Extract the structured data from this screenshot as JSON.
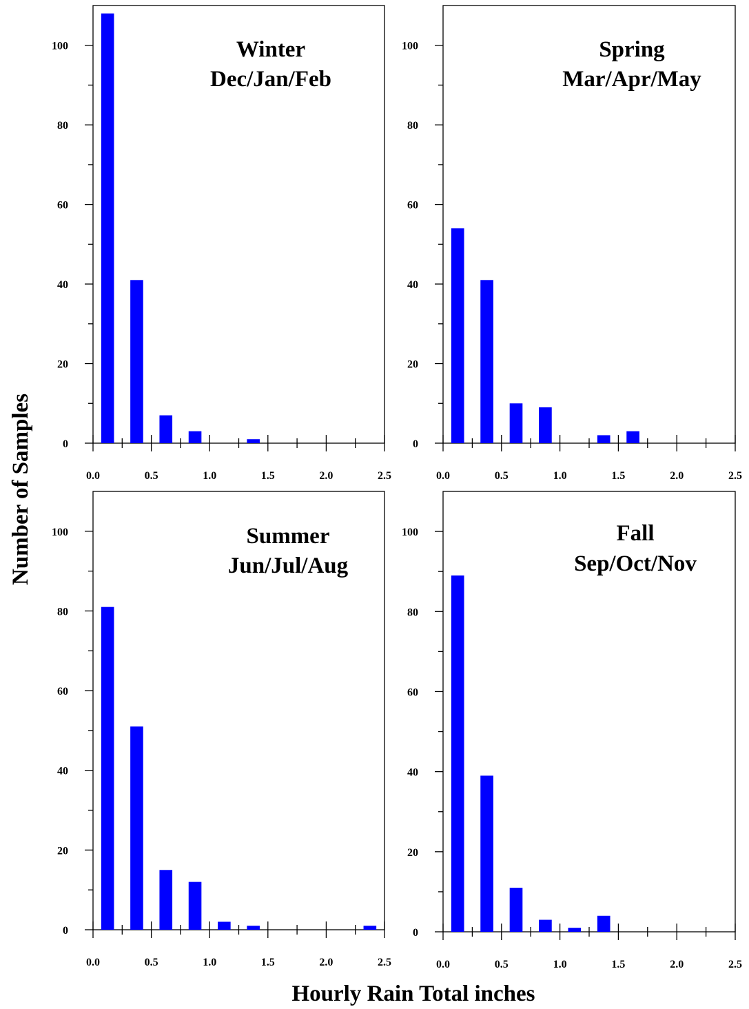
{
  "figure": {
    "ylabel": "Number of Samples",
    "xlabel": "Hourly Rain Total inches",
    "bar_color": "#0000ff"
  },
  "chart_data": [
    {
      "type": "bar",
      "title": "Winter",
      "subtitle": "Dec/Jan/Feb",
      "x": [
        0.125,
        0.375,
        0.625,
        0.875,
        1.375
      ],
      "values": [
        108,
        41,
        7,
        3,
        1
      ],
      "xlim": [
        0,
        2.5
      ],
      "ylim": [
        0,
        110
      ],
      "xticks": [
        "0.0",
        "0.5",
        "1.0",
        "1.5",
        "2.0",
        "2.5"
      ],
      "yticks": [
        "0",
        "20",
        "40",
        "60",
        "80",
        "100"
      ]
    },
    {
      "type": "bar",
      "title": "Spring",
      "subtitle": "Mar/Apr/May",
      "x": [
        0.125,
        0.375,
        0.625,
        0.875,
        1.375,
        1.625
      ],
      "values": [
        54,
        41,
        10,
        9,
        2,
        3
      ],
      "xlim": [
        0,
        2.5
      ],
      "ylim": [
        0,
        110
      ],
      "xticks": [
        "0.0",
        "0.5",
        "1.0",
        "1.5",
        "2.0",
        "2.5"
      ],
      "yticks": [
        "0",
        "20",
        "40",
        "60",
        "80",
        "100"
      ]
    },
    {
      "type": "bar",
      "title": "Summer",
      "subtitle": "Jun/Jul/Aug",
      "x": [
        0.125,
        0.375,
        0.625,
        0.875,
        1.125,
        1.375,
        2.375
      ],
      "values": [
        81,
        51,
        15,
        12,
        2,
        1,
        1
      ],
      "xlim": [
        0,
        2.5
      ],
      "ylim": [
        0,
        110
      ],
      "xticks": [
        "0.0",
        "0.5",
        "1.0",
        "1.5",
        "2.0",
        "2.5"
      ],
      "yticks": [
        "0",
        "20",
        "40",
        "60",
        "80",
        "100"
      ]
    },
    {
      "type": "bar",
      "title": "Fall",
      "subtitle": "Sep/Oct/Nov",
      "x": [
        0.125,
        0.375,
        0.625,
        0.875,
        1.125,
        1.375
      ],
      "values": [
        89,
        39,
        11,
        3,
        1,
        4
      ],
      "xlim": [
        0,
        2.5
      ],
      "ylim": [
        0,
        110
      ],
      "xticks": [
        "0.0",
        "0.5",
        "1.0",
        "1.5",
        "2.0",
        "2.5"
      ],
      "yticks": [
        "0",
        "20",
        "40",
        "60",
        "80",
        "100"
      ]
    }
  ]
}
